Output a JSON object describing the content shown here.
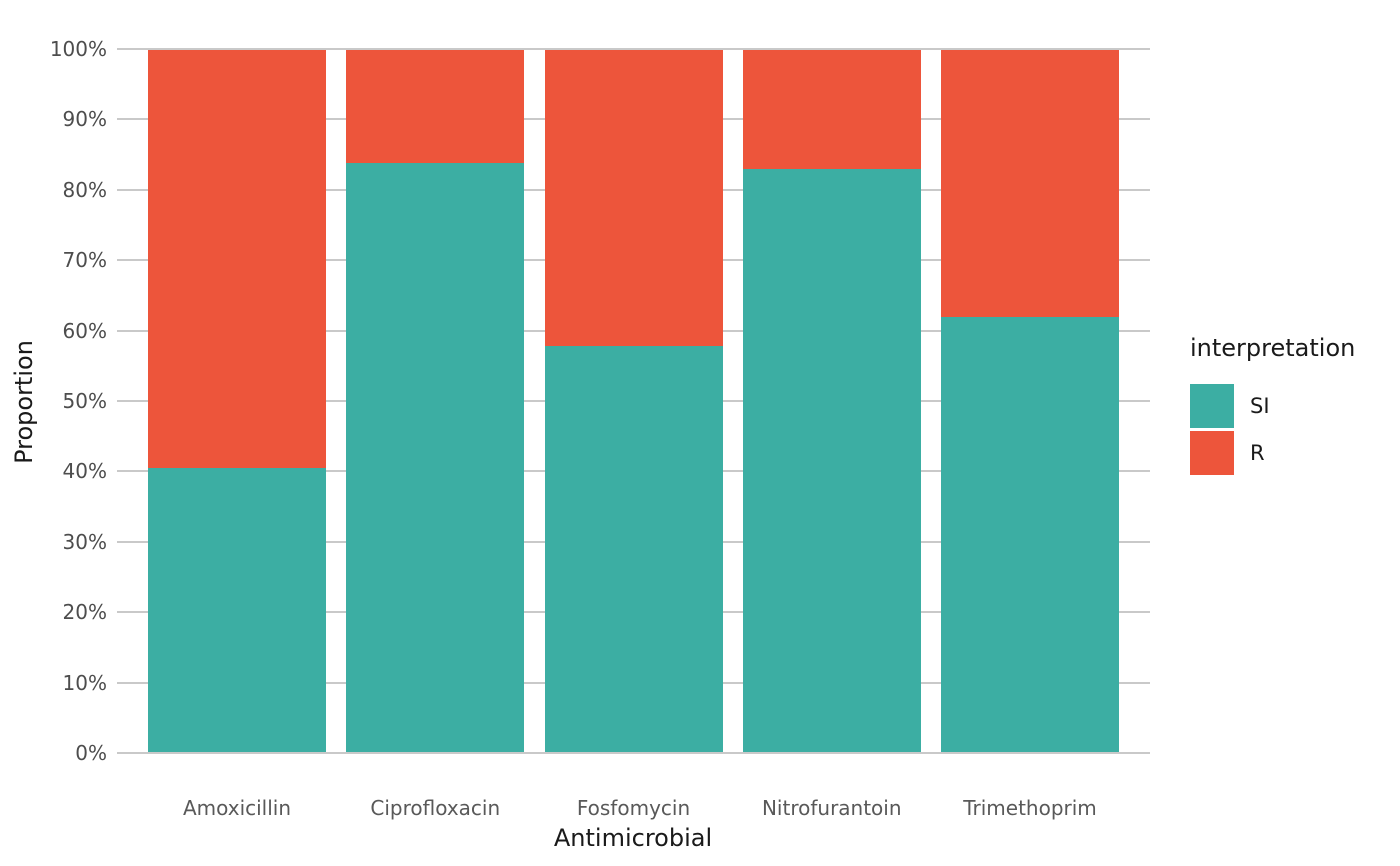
{
  "chart_data": {
    "type": "bar",
    "stacked": true,
    "orientation": "vertical",
    "title": "",
    "xlabel": "Antimicrobial",
    "ylabel": "Proportion",
    "categories": [
      "Amoxicillin",
      "Ciprofloxacin",
      "Fosfomycin",
      "Nitrofurantoin",
      "Trimethoprim"
    ],
    "series": [
      {
        "name": "SI",
        "color": "#3CAEA3",
        "values": [
          40.5,
          83.9,
          57.8,
          83.0,
          62.0
        ]
      },
      {
        "name": "R",
        "color": "#ED553B",
        "values": [
          59.5,
          16.1,
          42.2,
          17.0,
          38.0
        ]
      }
    ],
    "ylim": [
      0,
      100
    ],
    "y_tick_step": 10,
    "y_tick_labels": [
      "0%",
      "10%",
      "20%",
      "30%",
      "40%",
      "50%",
      "60%",
      "70%",
      "80%",
      "90%",
      "100%"
    ],
    "grid": true,
    "gridline_color": "#C9C9C9",
    "legend": {
      "title": "interpretation",
      "position": "right",
      "items": [
        {
          "label": "SI",
          "color": "#3CAEA3"
        },
        {
          "label": "R",
          "color": "#ED553B"
        }
      ]
    }
  },
  "layout_text": {
    "background": "#FFFFFF",
    "axis_text_color": "#4D4D4D",
    "axis_title_color": "#1A1A1A"
  }
}
